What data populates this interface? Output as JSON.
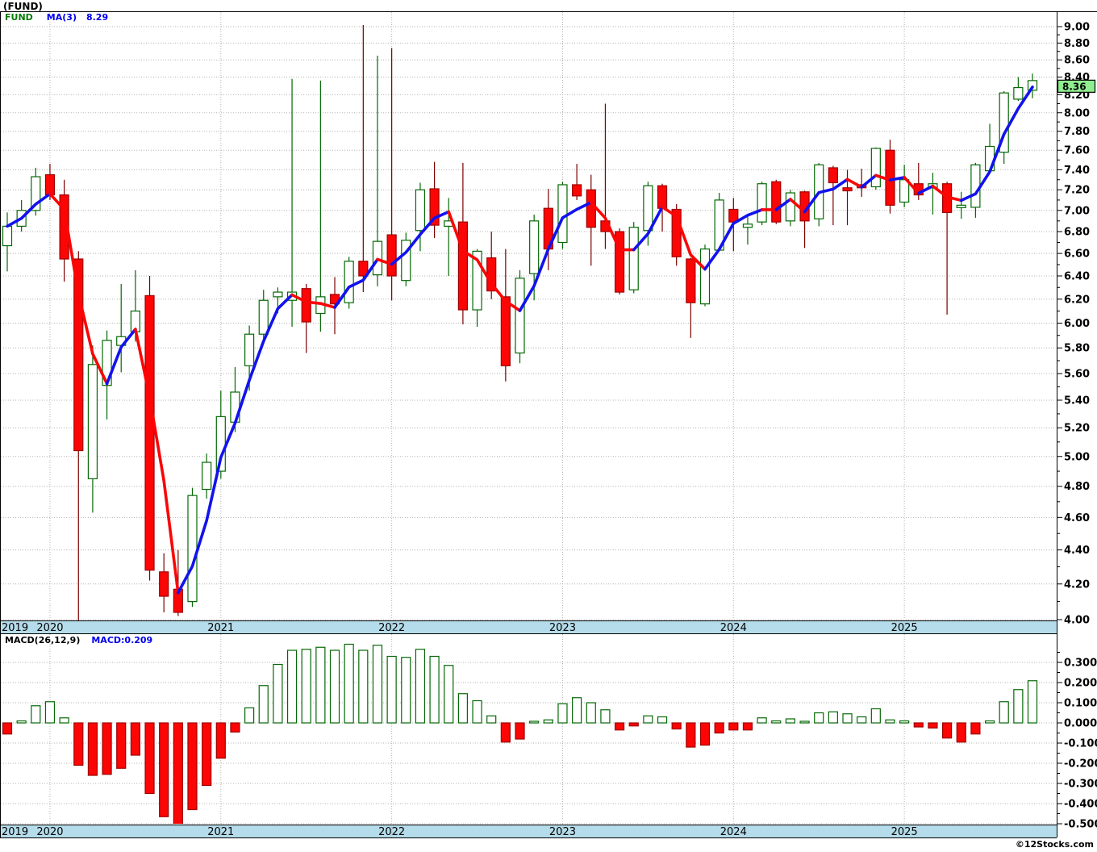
{
  "header": {
    "title": "(FUND)"
  },
  "main_legend": {
    "symbol": "FUND",
    "ma_label": "MA(3)",
    "ma_value": "8.29"
  },
  "macd_legend": {
    "label": "MACD(26,12,9)",
    "value": "MACD:0.209"
  },
  "footer": {
    "credit": "©12Stocks.com"
  },
  "colors": {
    "up_fill": "#ffffff",
    "up_stroke": "#056805",
    "up_wick": "#056805",
    "down_fill": "#fb0505",
    "down_stroke": "#a00000",
    "down_wick": "#7a0000",
    "ma_rising": "#1212ee",
    "ma_falling": "#fb0505",
    "grid": "#b3b3b3",
    "frame": "#000000",
    "axis_strip_bg": "#b5dcea",
    "axis_text": "#000000",
    "price_label_bg": "#90ee90",
    "macd_pos_fill": "#ffffff",
    "macd_pos_stroke": "#056805",
    "macd_neg_fill": "#fb0505",
    "macd_neg_stroke": "#a00000"
  },
  "x_axis": {
    "years": [
      "2019",
      "2020",
      "2021",
      "2022",
      "2023",
      "2024",
      "2025"
    ]
  },
  "chart_data": [
    {
      "type": "candlestick",
      "name": "FUND monthly OHLC",
      "y_axis": {
        "min": 4.0,
        "max": 9.0,
        "scale": "log",
        "label_step": 0.2,
        "tick_step": 0.1,
        "side": "right"
      },
      "grid": true,
      "year_gridlines": true,
      "last_close_label": "8.36",
      "overlay_ma": {
        "label": "MA(3)",
        "period": 3,
        "last_value": 8.29
      },
      "x": [
        "2019-10",
        "2019-11",
        "2019-12",
        "2020-01",
        "2020-02",
        "2020-03",
        "2020-04",
        "2020-05",
        "2020-06",
        "2020-07",
        "2020-08",
        "2020-09",
        "2020-10",
        "2020-11",
        "2020-12",
        "2021-01",
        "2021-02",
        "2021-03",
        "2021-04",
        "2021-05",
        "2021-06",
        "2021-07",
        "2021-08",
        "2021-09",
        "2021-10",
        "2021-11",
        "2021-12",
        "2022-01",
        "2022-02",
        "2022-03",
        "2022-04",
        "2022-05",
        "2022-06",
        "2022-07",
        "2022-08",
        "2022-09",
        "2022-10",
        "2022-11",
        "2022-12",
        "2023-01",
        "2023-02",
        "2023-03",
        "2023-04",
        "2023-05",
        "2023-06",
        "2023-07",
        "2023-08",
        "2023-09",
        "2023-10",
        "2023-11",
        "2023-12",
        "2024-01",
        "2024-02",
        "2024-03",
        "2024-04",
        "2024-05",
        "2024-06",
        "2024-07",
        "2024-08",
        "2024-09",
        "2024-10",
        "2024-11",
        "2024-12",
        "2025-01",
        "2025-02",
        "2025-03",
        "2025-04",
        "2025-05",
        "2025-06",
        "2025-07",
        "2025-08",
        "2025-09",
        "2025-10"
      ],
      "ohlc": [
        [
          6.67,
          6.98,
          6.44,
          6.85
        ],
        [
          6.85,
          7.1,
          6.8,
          7.0
        ],
        [
          7.0,
          7.42,
          6.95,
          7.33
        ],
        [
          7.35,
          7.46,
          7.1,
          7.15
        ],
        [
          7.15,
          7.3,
          6.35,
          6.55
        ],
        [
          6.55,
          6.62,
          3.98,
          5.04
        ],
        [
          4.85,
          5.82,
          4.63,
          5.67
        ],
        [
          5.51,
          5.94,
          5.26,
          5.86
        ],
        [
          5.82,
          6.33,
          5.61,
          5.89
        ],
        [
          5.93,
          6.45,
          5.85,
          6.1
        ],
        [
          6.23,
          6.4,
          4.22,
          4.28
        ],
        [
          4.27,
          4.38,
          4.04,
          4.13
        ],
        [
          4.17,
          4.4,
          4.02,
          4.04
        ],
        [
          4.1,
          4.79,
          4.07,
          4.74
        ],
        [
          4.78,
          5.02,
          4.72,
          4.96
        ],
        [
          4.9,
          5.47,
          4.85,
          5.28
        ],
        [
          5.24,
          5.65,
          5.17,
          5.46
        ],
        [
          5.66,
          5.98,
          5.47,
          5.91
        ],
        [
          5.91,
          6.28,
          5.85,
          6.19
        ],
        [
          6.22,
          6.3,
          6.08,
          6.26
        ],
        [
          6.19,
          8.38,
          5.97,
          6.26
        ],
        [
          6.29,
          6.33,
          5.76,
          6.01
        ],
        [
          6.08,
          8.36,
          5.93,
          6.22
        ],
        [
          6.24,
          6.39,
          5.91,
          6.16
        ],
        [
          6.17,
          6.57,
          6.12,
          6.53
        ],
        [
          6.53,
          9.02,
          6.26,
          6.4
        ],
        [
          6.41,
          8.65,
          6.31,
          6.71
        ],
        [
          6.77,
          8.74,
          6.19,
          6.4
        ],
        [
          6.36,
          6.79,
          6.31,
          6.72
        ],
        [
          6.81,
          7.27,
          6.62,
          7.2
        ],
        [
          7.21,
          7.48,
          6.74,
          6.86
        ],
        [
          6.85,
          7.12,
          6.4,
          6.9
        ],
        [
          6.89,
          7.47,
          5.99,
          6.11
        ],
        [
          6.11,
          6.64,
          5.97,
          6.62
        ],
        [
          6.56,
          6.8,
          6.2,
          6.27
        ],
        [
          6.22,
          6.64,
          5.54,
          5.66
        ],
        [
          5.76,
          6.45,
          5.68,
          6.38
        ],
        [
          6.42,
          6.96,
          6.19,
          6.9
        ],
        [
          7.02,
          7.21,
          6.45,
          6.64
        ],
        [
          6.7,
          7.28,
          6.64,
          7.25
        ],
        [
          7.25,
          7.46,
          7.1,
          7.14
        ],
        [
          7.2,
          7.35,
          6.49,
          6.84
        ],
        [
          6.9,
          8.1,
          6.64,
          6.8
        ],
        [
          6.8,
          6.83,
          6.24,
          6.26
        ],
        [
          6.28,
          6.89,
          6.25,
          6.84
        ],
        [
          6.81,
          7.28,
          6.67,
          7.24
        ],
        [
          7.24,
          7.26,
          6.8,
          7.02
        ],
        [
          7.01,
          7.06,
          6.49,
          6.57
        ],
        [
          6.55,
          6.56,
          5.88,
          6.17
        ],
        [
          6.16,
          6.68,
          6.14,
          6.64
        ],
        [
          6.63,
          7.17,
          6.62,
          7.1
        ],
        [
          7.01,
          7.12,
          6.62,
          6.89
        ],
        [
          6.84,
          6.94,
          6.68,
          6.87
        ],
        [
          6.89,
          7.28,
          6.86,
          7.26
        ],
        [
          7.28,
          7.3,
          6.87,
          6.89
        ],
        [
          6.9,
          7.2,
          6.85,
          7.17
        ],
        [
          7.18,
          7.19,
          6.65,
          6.9
        ],
        [
          6.92,
          7.47,
          6.85,
          7.45
        ],
        [
          7.42,
          7.44,
          6.86,
          7.27
        ],
        [
          7.22,
          7.4,
          6.86,
          7.19
        ],
        [
          7.25,
          7.41,
          7.13,
          7.22
        ],
        [
          7.23,
          7.63,
          7.2,
          7.62
        ],
        [
          7.6,
          7.71,
          6.97,
          7.05
        ],
        [
          7.08,
          7.45,
          7.03,
          7.3
        ],
        [
          7.26,
          7.47,
          7.1,
          7.15
        ],
        [
          7.22,
          7.37,
          6.96,
          7.26
        ],
        [
          7.26,
          7.28,
          6.07,
          6.98
        ],
        [
          7.03,
          7.18,
          6.92,
          7.05
        ],
        [
          7.03,
          7.47,
          6.93,
          7.45
        ],
        [
          7.39,
          7.88,
          7.38,
          7.64
        ],
        [
          7.58,
          8.24,
          7.46,
          8.22
        ],
        [
          8.15,
          8.4,
          8.13,
          8.28
        ],
        [
          8.25,
          8.44,
          8.16,
          8.36
        ]
      ]
    },
    {
      "type": "bar",
      "name": "MACD(26,12,9)",
      "y_axis": {
        "min": -0.5,
        "max": 0.35,
        "label_step": 0.1,
        "tick_step": 0.05,
        "side": "right"
      },
      "grid": true,
      "last_value": 0.209,
      "values": [
        -0.055,
        0.01,
        0.085,
        0.105,
        0.025,
        -0.21,
        -0.26,
        -0.255,
        -0.225,
        -0.16,
        -0.35,
        -0.465,
        -0.51,
        -0.43,
        -0.31,
        -0.175,
        -0.045,
        0.075,
        0.185,
        0.29,
        0.36,
        0.365,
        0.375,
        0.36,
        0.39,
        0.36,
        0.385,
        0.33,
        0.325,
        0.365,
        0.33,
        0.285,
        0.145,
        0.11,
        0.035,
        -0.095,
        -0.08,
        0.005,
        0.015,
        0.095,
        0.125,
        0.1,
        0.065,
        -0.035,
        -0.015,
        0.035,
        0.03,
        -0.03,
        -0.12,
        -0.11,
        -0.05,
        -0.035,
        -0.035,
        0.025,
        0.01,
        0.02,
        0.005,
        0.05,
        0.055,
        0.045,
        0.03,
        0.07,
        0.015,
        0.01,
        -0.02,
        -0.025,
        -0.075,
        -0.095,
        -0.055,
        0.01,
        0.105,
        0.165,
        0.209
      ]
    }
  ]
}
